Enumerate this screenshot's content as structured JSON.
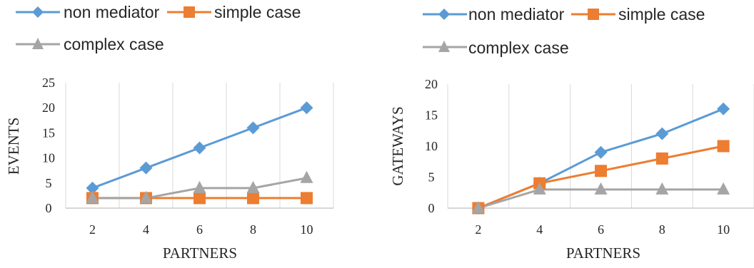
{
  "chart_data": [
    {
      "type": "line",
      "title": "",
      "xlabel": "PARTNERS",
      "ylabel": "EVENTS",
      "categories": [
        "2",
        "4",
        "6",
        "8",
        "10"
      ],
      "ylim": [
        0,
        25
      ],
      "yticks": [
        "0",
        "5",
        "10",
        "15",
        "20",
        "25"
      ],
      "grid": "vertical",
      "legend": "top",
      "series": [
        {
          "name": "non mediator",
          "values": [
            4,
            8,
            12,
            16,
            20
          ],
          "color": "#5B9BD5",
          "marker": "diamond"
        },
        {
          "name": "simple case",
          "values": [
            2,
            2,
            2,
            2,
            2
          ],
          "color": "#ED7D31",
          "marker": "square"
        },
        {
          "name": "complex case",
          "values": [
            2,
            2,
            4,
            4,
            6
          ],
          "color": "#A5A5A5",
          "marker": "triangle"
        }
      ]
    },
    {
      "type": "line",
      "title": "",
      "xlabel": "PARTNERS",
      "ylabel": "GATEWAYS",
      "categories": [
        "2",
        "4",
        "6",
        "8",
        "10"
      ],
      "ylim": [
        0,
        20
      ],
      "yticks": [
        "0",
        "5",
        "10",
        "15",
        "20"
      ],
      "grid": "vertical",
      "legend": "top",
      "series": [
        {
          "name": "non mediator",
          "values": [
            0,
            4,
            9,
            12,
            16
          ],
          "color": "#5B9BD5",
          "marker": "diamond"
        },
        {
          "name": "simple case",
          "values": [
            0,
            4,
            6,
            8,
            10
          ],
          "color": "#ED7D31",
          "marker": "square"
        },
        {
          "name": "complex case",
          "values": [
            0,
            3,
            3,
            3,
            3
          ],
          "color": "#A5A5A5",
          "marker": "triangle"
        }
      ]
    }
  ]
}
